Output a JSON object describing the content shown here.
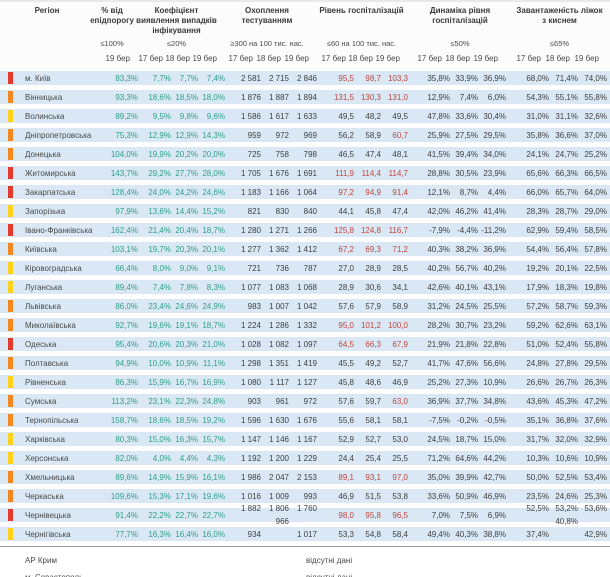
{
  "header": {
    "region": "Регіон",
    "groups": [
      {
        "title": "% від епідпорогу",
        "threshold": "≤100%",
        "dates": [
          "19 бер"
        ]
      },
      {
        "title": "Коефіцієнт виявлення випадків інфікування",
        "threshold": "≤20%",
        "dates": [
          "17 бер",
          "18 бер",
          "19 бер"
        ]
      },
      {
        "title": "Охоплення тестуванням",
        "threshold": "≥300 на 100 тис. нас.",
        "dates": [
          "17 бер",
          "18 бер",
          "19 бер"
        ]
      },
      {
        "title": "Рівень госпіталізацій",
        "threshold": "≤60 на 100 тис. нас.",
        "dates": [
          "17 бер",
          "18 бер",
          "19 бер"
        ]
      },
      {
        "title": "Динаміка рівня госпіталізацій",
        "threshold": "≤50%",
        "dates": [
          "17 бер",
          "18 бер",
          "19 бер"
        ]
      },
      {
        "title": "Завантаженість ліжок з киснем",
        "threshold": "≤65%",
        "dates": [
          "17 бер",
          "18 бер",
          "19 бер"
        ]
      }
    ]
  },
  "colors": {
    "band": "#d9e8f4",
    "teal_text": "#2f9d8c",
    "alert_text": "#c0473e",
    "status": {
      "red": "#e23b2e",
      "orange": "#f5871f",
      "yellow": "#fcd21d"
    }
  },
  "hospitalization_alert_threshold": 60,
  "rows": [
    {
      "region": "м. Київ",
      "status": "red",
      "pct": "83,3%",
      "detection": [
        "7,7%",
        "7,7%",
        "7,4%"
      ],
      "testing": [
        "2 581",
        "2 715",
        "2 846"
      ],
      "hosp": [
        "95,5",
        "98,7",
        "103,3"
      ],
      "dynamics": [
        "35,8%",
        "33,9%",
        "36,9%"
      ],
      "oxygen": [
        "68,0%",
        "71,4%",
        "74,0%"
      ]
    },
    {
      "region": "Вінницька",
      "status": "orange",
      "pct": "93,3%",
      "detection": [
        "18,6%",
        "18,5%",
        "18,0%"
      ],
      "testing": [
        "1 876",
        "1 887",
        "1 894"
      ],
      "hosp": [
        "131,5",
        "130,3",
        "131,0"
      ],
      "dynamics": [
        "12,9%",
        "7,4%",
        "6,0%"
      ],
      "oxygen": [
        "54,3%",
        "55,1%",
        "55,8%"
      ]
    },
    {
      "region": "Волинська",
      "status": "yellow",
      "pct": "89,2%",
      "detection": [
        "9,5%",
        "9,8%",
        "9,6%"
      ],
      "testing": [
        "1 586",
        "1 617",
        "1 633"
      ],
      "hosp": [
        "49,5",
        "48,2",
        "49,5"
      ],
      "dynamics": [
        "47,8%",
        "33,6%",
        "30,4%"
      ],
      "oxygen": [
        "31,0%",
        "31,1%",
        "32,6%"
      ]
    },
    {
      "region": "Дніпропетровська",
      "status": "orange",
      "pct": "75,3%",
      "detection": [
        "12,9%",
        "12,9%",
        "14,3%"
      ],
      "testing": [
        "959",
        "972",
        "969"
      ],
      "hosp": [
        "56,2",
        "58,9",
        "60,7"
      ],
      "dynamics": [
        "25,9%",
        "27,5%",
        "29,5%"
      ],
      "oxygen": [
        "35,8%",
        "36,6%",
        "37,0%"
      ]
    },
    {
      "region": "Донецька",
      "status": "orange",
      "pct": "104,0%",
      "detection": [
        "19,9%",
        "20,2%",
        "20,0%"
      ],
      "testing": [
        "725",
        "758",
        "798"
      ],
      "hosp": [
        "46,5",
        "47,4",
        "48,1"
      ],
      "dynamics": [
        "41,5%",
        "39,4%",
        "34,0%"
      ],
      "oxygen": [
        "24,1%",
        "24,7%",
        "25,2%"
      ]
    },
    {
      "region": "Житомирська",
      "status": "red",
      "pct": "143,7%",
      "detection": [
        "29,2%",
        "27,7%",
        "28,0%"
      ],
      "testing": [
        "1 705",
        "1 676",
        "1 691"
      ],
      "hosp": [
        "111,9",
        "114,4",
        "114,7"
      ],
      "dynamics": [
        "28,8%",
        "30,5%",
        "23,9%"
      ],
      "oxygen": [
        "65,6%",
        "66,3%",
        "66,5%"
      ]
    },
    {
      "region": "Закарпатська",
      "status": "red",
      "pct": "128,4%",
      "detection": [
        "24,0%",
        "24,2%",
        "24,6%"
      ],
      "testing": [
        "1 183",
        "1 166",
        "1 064"
      ],
      "hosp": [
        "97,2",
        "94,9",
        "91,4"
      ],
      "dynamics": [
        "12,1%",
        "8,7%",
        "4,4%"
      ],
      "oxygen": [
        "66,0%",
        "65,7%",
        "64,0%"
      ]
    },
    {
      "region": "Запорізька",
      "status": "yellow",
      "pct": "97,9%",
      "detection": [
        "13,6%",
        "14,4%",
        "15,2%"
      ],
      "testing": [
        "821",
        "830",
        "840"
      ],
      "hosp": [
        "44,1",
        "45,8",
        "47,4"
      ],
      "dynamics": [
        "42,0%",
        "46,2%",
        "41,4%"
      ],
      "oxygen": [
        "28,3%",
        "28,7%",
        "29,0%"
      ]
    },
    {
      "region": "Івано-Франківська",
      "status": "red",
      "pct": "162,4%",
      "detection": [
        "21,4%",
        "20,4%",
        "18,7%"
      ],
      "testing": [
        "1 280",
        "1 271",
        "1 266"
      ],
      "hosp": [
        "125,8",
        "124,8",
        "116,7"
      ],
      "dynamics": [
        "-7,9%",
        "-4,4%",
        "-11,2%"
      ],
      "oxygen": [
        "62,9%",
        "59,4%",
        "58,5%"
      ]
    },
    {
      "region": "Київська",
      "status": "orange",
      "pct": "103,1%",
      "detection": [
        "19,7%",
        "20,3%",
        "20,1%"
      ],
      "testing": [
        "1 277",
        "1 362",
        "1 412"
      ],
      "hosp": [
        "67,2",
        "69,3",
        "71,2"
      ],
      "dynamics": [
        "40,3%",
        "38,2%",
        "36,9%"
      ],
      "oxygen": [
        "54,4%",
        "56,4%",
        "57,8%"
      ]
    },
    {
      "region": "Кіровоградська",
      "status": "yellow",
      "pct": "66,4%",
      "detection": [
        "8,0%",
        "9,0%",
        "9,1%"
      ],
      "testing": [
        "721",
        "736",
        "787"
      ],
      "hosp": [
        "27,0",
        "28,9",
        "28,5"
      ],
      "dynamics": [
        "40,2%",
        "56,7%",
        "40,2%"
      ],
      "oxygen": [
        "19,2%",
        "20,1%",
        "22,5%"
      ]
    },
    {
      "region": "Луганська",
      "status": "yellow",
      "pct": "89,4%",
      "detection": [
        "7,4%",
        "7,8%",
        "8,3%"
      ],
      "testing": [
        "1 077",
        "1 083",
        "1 068"
      ],
      "hosp": [
        "28,9",
        "30,6",
        "34,1"
      ],
      "dynamics": [
        "42,6%",
        "40,1%",
        "43,1%"
      ],
      "oxygen": [
        "17,9%",
        "18,3%",
        "19,8%"
      ]
    },
    {
      "region": "Львівська",
      "status": "orange",
      "pct": "86,0%",
      "detection": [
        "23,4%",
        "24,6%",
        "24,9%"
      ],
      "testing": [
        "983",
        "1 007",
        "1 042"
      ],
      "hosp": [
        "57,6",
        "57,9",
        "58,9"
      ],
      "dynamics": [
        "31,2%",
        "24,5%",
        "25,5%"
      ],
      "oxygen": [
        "57,2%",
        "58,7%",
        "59,3%"
      ]
    },
    {
      "region": "Миколаївська",
      "status": "orange",
      "pct": "92,7%",
      "detection": [
        "19,6%",
        "19,1%",
        "18,7%"
      ],
      "testing": [
        "1 224",
        "1 286",
        "1 332"
      ],
      "hosp": [
        "95,0",
        "101,2",
        "100,0"
      ],
      "dynamics": [
        "28,2%",
        "30,7%",
        "23,2%"
      ],
      "oxygen": [
        "59,2%",
        "62,6%",
        "63,1%"
      ]
    },
    {
      "region": "Одеська",
      "status": "red",
      "pct": "95,4%",
      "detection": [
        "20,6%",
        "20,3%",
        "21,0%"
      ],
      "testing": [
        "1 028",
        "1 082",
        "1 097"
      ],
      "hosp": [
        "64,5",
        "66,3",
        "67,9"
      ],
      "dynamics": [
        "21,9%",
        "21,8%",
        "22,8%"
      ],
      "oxygen": [
        "51,0%",
        "52,4%",
        "55,8%"
      ]
    },
    {
      "region": "Полтавська",
      "status": "orange",
      "pct": "94,9%",
      "detection": [
        "10,0%",
        "10,9%",
        "11,1%"
      ],
      "testing": [
        "1 298",
        "1 351",
        "1 419"
      ],
      "hosp": [
        "45,5",
        "49,2",
        "52,7"
      ],
      "dynamics": [
        "41,7%",
        "47,6%",
        "56,6%"
      ],
      "oxygen": [
        "24,8%",
        "27,8%",
        "29,5%"
      ]
    },
    {
      "region": "Рівненська",
      "status": "yellow",
      "pct": "86,3%",
      "detection": [
        "15,9%",
        "16,7%",
        "16,9%"
      ],
      "testing": [
        "1 080",
        "1 117",
        "1 127"
      ],
      "hosp": [
        "45,8",
        "48,6",
        "46,9"
      ],
      "dynamics": [
        "25,2%",
        "27,3%",
        "10,9%"
      ],
      "oxygen": [
        "26,6%",
        "26,7%",
        "26,3%"
      ]
    },
    {
      "region": "Сумська",
      "status": "orange",
      "pct": "113,2%",
      "detection": [
        "23,1%",
        "22,3%",
        "24,8%"
      ],
      "testing": [
        "903",
        "961",
        "972"
      ],
      "hosp": [
        "57,6",
        "59,7",
        "63,0"
      ],
      "dynamics": [
        "36,9%",
        "37,7%",
        "34,8%"
      ],
      "oxygen": [
        "43,6%",
        "45,3%",
        "47,2%"
      ]
    },
    {
      "region": "Тернопільська",
      "status": "orange",
      "pct": "158,7%",
      "detection": [
        "18,6%",
        "18,5%",
        "19,2%"
      ],
      "testing": [
        "1 596",
        "1 630",
        "1 676"
      ],
      "hosp": [
        "55,6",
        "58,1",
        "58,1"
      ],
      "dynamics": [
        "-7,5%",
        "-0,2%",
        "-0,5%"
      ],
      "oxygen": [
        "35,1%",
        "36,8%",
        "37,6%"
      ]
    },
    {
      "region": "Харківська",
      "status": "yellow",
      "pct": "80,3%",
      "detection": [
        "15,0%",
        "16,3%",
        "15,7%"
      ],
      "testing": [
        "1 147",
        "1 146",
        "1 167"
      ],
      "hosp": [
        "52,9",
        "52,7",
        "53,0"
      ],
      "dynamics": [
        "24,5%",
        "18,7%",
        "15,0%"
      ],
      "oxygen": [
        "31,7%",
        "32,0%",
        "32,9%"
      ]
    },
    {
      "region": "Херсонська",
      "status": "yellow",
      "pct": "82,0%",
      "detection": [
        "4,0%",
        "4,4%",
        "4,3%"
      ],
      "testing": [
        "1 192",
        "1 200",
        "1 229"
      ],
      "hosp": [
        "24,4",
        "25,4",
        "25,5"
      ],
      "dynamics": [
        "71,2%",
        "64,6%",
        "44,2%"
      ],
      "oxygen": [
        "10,3%",
        "10,6%",
        "10,9%"
      ]
    },
    {
      "region": "Хмельницька",
      "status": "orange",
      "pct": "89,6%",
      "detection": [
        "14,9%",
        "15,9%",
        "16,1%"
      ],
      "testing": [
        "1 986",
        "2 047",
        "2 153"
      ],
      "hosp": [
        "89,1",
        "93,1",
        "97,0"
      ],
      "dynamics": [
        "35,0%",
        "39,9%",
        "42,7%"
      ],
      "oxygen": [
        "50,0%",
        "52,5%",
        "53,4%"
      ]
    },
    {
      "region": "Черкаська",
      "status": "orange",
      "pct": "109,6%",
      "detection": [
        "15,3%",
        "17,1%",
        "19,6%"
      ],
      "testing": [
        "1 016",
        "1 009",
        "993"
      ],
      "hosp": [
        "46,9",
        "51,5",
        "53,8"
      ],
      "dynamics": [
        "33,6%",
        "50,9%",
        "46,9%"
      ],
      "oxygen": [
        "23,5%",
        "24,6%",
        "25,3%"
      ]
    },
    {
      "region": "Чернівецька",
      "status": "red",
      "pct": "91,4%",
      "detection": [
        "22,2%",
        "22,7%",
        "22,7%"
      ],
      "testing": [
        "1 882",
        "1 806\n966",
        "1 760"
      ],
      "hosp": [
        "98,0",
        "95,8",
        "96,5"
      ],
      "dynamics": [
        "7,0%",
        "7,5%",
        "6,9%"
      ],
      "oxygen": [
        "52,5%",
        "53,2%\n40,8%",
        "53,6%"
      ]
    },
    {
      "region": "Чернігівська",
      "status": "yellow",
      "pct": "77,7%",
      "detection": [
        "16,3%",
        "16,4%",
        "16,0%"
      ],
      "testing": [
        "934",
        "",
        "1 017"
      ],
      "hosp": [
        "53,3",
        "54,8",
        "58,4"
      ],
      "dynamics": [
        "49,4%",
        "40,3%",
        "38,8%"
      ],
      "oxygen": [
        "37,4%",
        "",
        "42,9%"
      ]
    }
  ],
  "footer": [
    {
      "region": "АР Крим",
      "note": "відсутні дані"
    },
    {
      "region": "м. Севастополь",
      "note": "відсутні дані"
    }
  ]
}
